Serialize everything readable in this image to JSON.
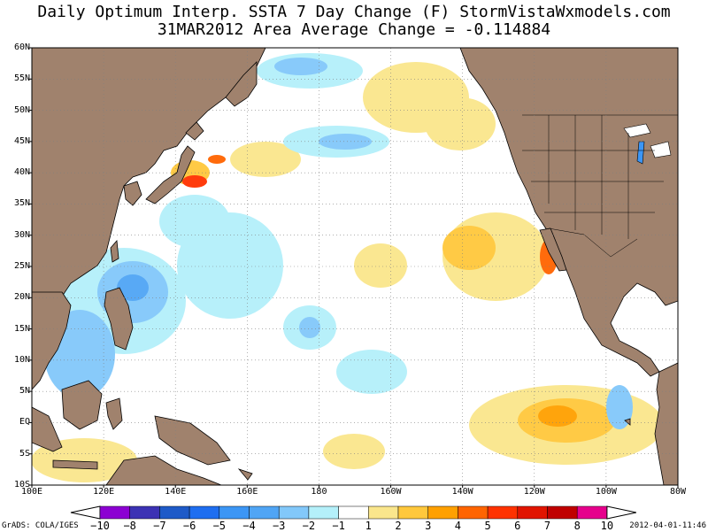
{
  "header": {
    "title": "Daily Optimum Interp. SSTA 7 Day Change (F) StormVistaWxmodels.com",
    "subtitle": "31MAR2012 Area Average Change = -0.114884"
  },
  "map": {
    "lat_labels": [
      "60N",
      "55N",
      "50N",
      "45N",
      "40N",
      "35N",
      "30N",
      "25N",
      "20N",
      "15N",
      "10N",
      "5N",
      "EQ",
      "5S",
      "10S"
    ],
    "lon_labels": [
      "100E",
      "120E",
      "140E",
      "160E",
      "180",
      "160W",
      "140W",
      "120W",
      "100W",
      "80W"
    ],
    "land_color": "#a0826d",
    "ocean_background": "#ffffff"
  },
  "colorbar": {
    "labels": [
      "-10",
      "-8",
      "-7",
      "-6",
      "-5",
      "-4",
      "-3",
      "-2",
      "-1",
      "1",
      "2",
      "3",
      "4",
      "5",
      "6",
      "7",
      "8",
      "10"
    ],
    "colors": [
      "#8c00d2",
      "#3c32b4",
      "#1e5ac8",
      "#1e6ef0",
      "#3c96f5",
      "#50a5f5",
      "#82c8fa",
      "#b4f0fa",
      "#ffffff",
      "#fae68c",
      "#ffc83c",
      "#ffa000",
      "#ff6400",
      "#ff3200",
      "#e11400",
      "#c00000",
      "#e6008c"
    ]
  },
  "footer": {
    "credit": "GrADS: COLA/IGES",
    "timestamp": "2012-04-01-11:46"
  }
}
